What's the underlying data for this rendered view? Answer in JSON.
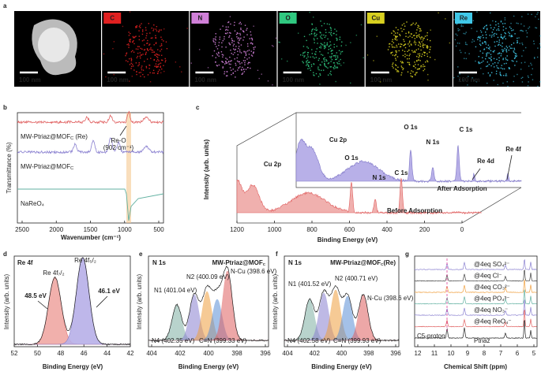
{
  "panel_labels": [
    "a",
    "b",
    "c",
    "d",
    "e",
    "f",
    "g"
  ],
  "a": {
    "elements": [
      "C",
      "N",
      "O",
      "Cu",
      "Re"
    ],
    "scale_bar": "100 nm"
  },
  "b": {
    "y_label": "Transmittance (%)",
    "x_label": "Wavenumber (cm⁻¹)",
    "xticks": [
      2500,
      2000,
      1500,
      1000,
      500
    ],
    "series": [
      {
        "text": "MW-Ptriaz@MOF",
        "sub": "C",
        "tail": " (Re)"
      },
      {
        "text": "MW-Ptriaz@MOF",
        "sub": "C"
      },
      {
        "text": "NaReO₄"
      }
    ],
    "annotation": [
      "Re-O",
      "(902 cm⁻¹)"
    ]
  },
  "c": {
    "y_label": "Intensity (arb. units)",
    "x_label": "Binding Energy (eV)",
    "xticks": [
      1200,
      1000,
      800,
      600,
      400,
      200,
      0
    ],
    "after_peaks": [
      "Cu 2p",
      "O 1s",
      "N 1s",
      "C 1s",
      "Re 4d",
      "Re 4f"
    ],
    "before_peaks": [
      "Cu 2p",
      "O 1s",
      "N 1s",
      "C 1s"
    ],
    "after": "After Adsorption",
    "before": "Before Adsorption"
  },
  "d": {
    "title": "Re 4f",
    "y_label": "Intensity (arb. units)",
    "x_label": "Binding Energy (eV)",
    "xticks": [
      52,
      50,
      48,
      46,
      44,
      42
    ],
    "peak1": "Re 4f₇/₂",
    "peak2": "Re 4f₅/₂",
    "e1": "48.5 eV",
    "e2": "46.1 eV"
  },
  "e": {
    "title": "N 1s",
    "sample": {
      "text": "MW-Ptriaz@MOF",
      "sub": "C"
    },
    "y_label": "Intensity (arb. units)",
    "x_label": "Binding Energy (eV)",
    "xticks": [
      404,
      402,
      400,
      398,
      396
    ],
    "peaks": [
      "N4 (402.35 eV)",
      "N1 (401.04 eV)",
      "N2 (400.09 eV)",
      "C≡N (399.33 eV)",
      "N-Cu (398.6 eV)"
    ]
  },
  "f": {
    "title": "N 1s",
    "sample": {
      "text": "MW-Ptriaz@MOF",
      "sub": "C",
      "tail": "(Re)"
    },
    "y_label": "Intensity (arb. units)",
    "x_label": "Binding Energy (eV)",
    "xticks": [
      404,
      402,
      400,
      398,
      396
    ],
    "peaks": [
      "N4 (402.58 eV)",
      "N1 (401.52 eV)",
      "N2 (400.71 eV)",
      "C≡N (399.93 eV)",
      "N-Cu (398.6 eV)"
    ]
  },
  "g": {
    "x_label": "Chemical Shift (ppm)",
    "xticks": [
      12,
      11,
      10,
      9,
      8,
      7,
      6,
      5
    ],
    "traces": [
      "@4eq SO₄²⁻",
      "@4eq Cl⁻",
      "@4eq CO₃²⁻",
      "@4eq PO₄³⁻",
      "@4eq NO₃⁻",
      "@4eq ReO₄⁻"
    ],
    "proton": "C5-proton",
    "base": "Ptriaz"
  }
}
